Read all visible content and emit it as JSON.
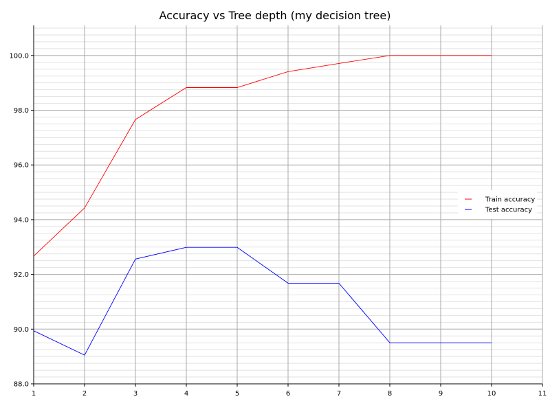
{
  "chart_data": {
    "type": "line",
    "title": "Accuracy vs Tree depth (my decision tree)",
    "xlabel": "",
    "ylabel": "",
    "x": [
      1,
      2,
      3,
      4,
      5,
      6,
      7,
      8,
      9,
      10
    ],
    "xlim": [
      1,
      11
    ],
    "ylim": [
      88.0,
      101.1
    ],
    "x_ticks": [
      1,
      2,
      3,
      4,
      5,
      6,
      7,
      8,
      9,
      10,
      11
    ],
    "y_ticks": [
      88.0,
      90.0,
      92.0,
      94.0,
      96.0,
      98.0,
      100.0
    ],
    "grid": true,
    "minor_grid": true,
    "legend_position": "center-right",
    "series": [
      {
        "name": "Train accuracy",
        "color": "#ff0000",
        "values": [
          92.67,
          94.43,
          97.66,
          98.83,
          98.83,
          99.41,
          99.71,
          100.0,
          100.0,
          100.0
        ]
      },
      {
        "name": "Test accuracy",
        "color": "#0000ff",
        "values": [
          89.94,
          89.05,
          92.56,
          92.99,
          92.99,
          91.68,
          91.68,
          89.5,
          89.5,
          89.5
        ]
      }
    ]
  }
}
